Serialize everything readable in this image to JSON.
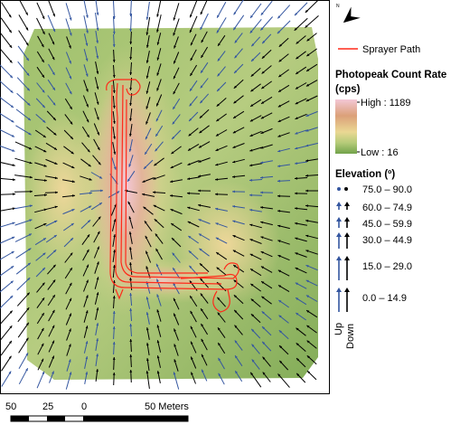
{
  "legend": {
    "sprayer_path_label": "Sprayer Path",
    "count_rate": {
      "title_line1": "Photopeak Count Rate",
      "title_line2": "(cps)",
      "high_label": "High : 1189",
      "low_label": "Low : 16",
      "colors": [
        "#f3c7d6",
        "#dba079",
        "#ead893",
        "#b5cb79",
        "#72a24a"
      ]
    },
    "elevation": {
      "title": "Elevation (º)",
      "classes": [
        "75.0 – 90.0",
        "60.0 – 74.9",
        "45.0 – 59.9",
        "30.0 – 44.9",
        "15.0 – 29.0",
        "0.0 – 14.9"
      ],
      "up_label": "Up",
      "down_label": "Down",
      "up_color": "#3456a0",
      "down_color": "#000000"
    },
    "sprayer_path_color": "#ff2a1a"
  },
  "scale_bar": {
    "labels": [
      "50",
      "25",
      "0",
      "50 Meters"
    ]
  },
  "north_arrow": {
    "icon": "north-arrow-icon",
    "label": "N"
  }
}
